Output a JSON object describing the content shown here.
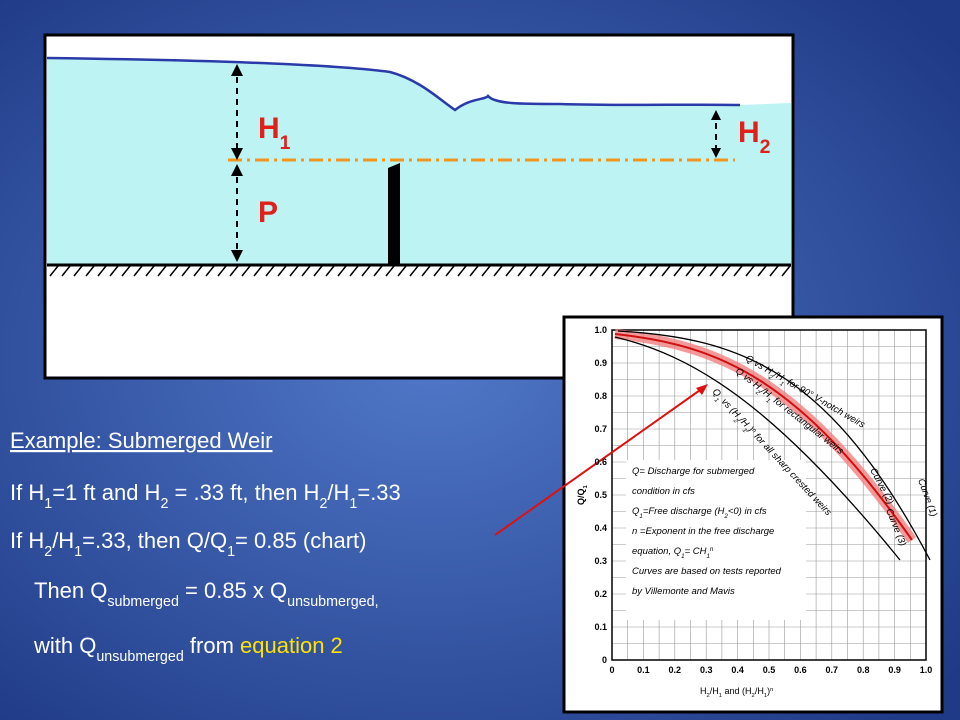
{
  "diagram": {
    "h1": [
      "H",
      {
        "sub": "1"
      }
    ],
    "h2": [
      "H",
      {
        "sub": "2"
      }
    ],
    "p": [
      "P"
    ]
  },
  "text": {
    "title": "Example: Submerged Weir",
    "lines": [
      [
        "If H",
        {
          "sub": "1"
        },
        "=1 ft and H",
        {
          "sub": "2"
        },
        " = .33 ft, then H",
        {
          "sub": "2"
        },
        "/H",
        {
          "sub": "1"
        },
        "=.33"
      ],
      [
        "If H",
        {
          "sub": "2"
        },
        "/H",
        {
          "sub": "1"
        },
        "=.33, then Q/Q",
        {
          "sub": "1"
        },
        "= 0.85 (chart)"
      ],
      [
        "Then Q",
        {
          "sub": "submerged"
        },
        " = 0.85 x  Q",
        {
          "sub": "unsubmerged,"
        }
      ],
      [
        "with Q",
        {
          "sub": "unsubmerged"
        },
        "  from ",
        {
          "em": "equation 2"
        }
      ]
    ]
  },
  "figure": {
    "x_ticks": [
      "0",
      "0.1",
      "0.2",
      "0.3",
      "0.4",
      "0.5",
      "0.6",
      "0.7",
      "0.8",
      "0.9",
      "1.0"
    ],
    "y_ticks": [
      "0",
      "0.1",
      "0.2",
      "0.3",
      "0.4",
      "0.5",
      "0.6",
      "0.7",
      "0.8",
      "0.9",
      "1.0"
    ],
    "y_label": [
      "Q/Q",
      {
        "sub": "1"
      }
    ],
    "x_label": [
      "H",
      {
        "sub": "2"
      },
      "/H",
      {
        "sub": "1"
      },
      " and (H",
      {
        "sub": "2"
      },
      "/H",
      {
        "sub": "1"
      },
      ")",
      {
        "sup": "n"
      }
    ],
    "curve_labels": [
      [
        "Q vs H",
        {
          "sub": "2"
        },
        "/H",
        {
          "sub": "1"
        },
        " for 90° V-notch weirs"
      ],
      [
        "Q vs H",
        {
          "sub": "2"
        },
        "/H",
        {
          "sub": "1"
        },
        " for rectangular weirs"
      ],
      [
        "Q",
        {
          "sub": "1"
        },
        " vs (H",
        {
          "sub": "2"
        },
        "/H",
        {
          "sub": "1"
        },
        ")",
        {
          "sup": "n"
        },
        " for all sharp crested weirs"
      ]
    ],
    "curve_names": [
      "Curve (1)",
      "Curve (2)",
      "Curve (3)"
    ],
    "notes": [
      [
        "Q= Discharge for submerged"
      ],
      [
        "condition in cfs"
      ],
      [
        "Q",
        {
          "sub": "1"
        },
        "=Free discharge (H",
        {
          "sub": "2"
        },
        "<0) in cfs"
      ],
      [
        "n =Exponent in the free discharge"
      ],
      [
        "equation, Q",
        {
          "sub": "1"
        },
        "= CH",
        {
          "sub": "1"
        },
        {
          "sup": "n"
        }
      ],
      [
        "Curves are based on tests reported"
      ],
      [
        "by Villemonte and Mavis"
      ]
    ]
  }
}
